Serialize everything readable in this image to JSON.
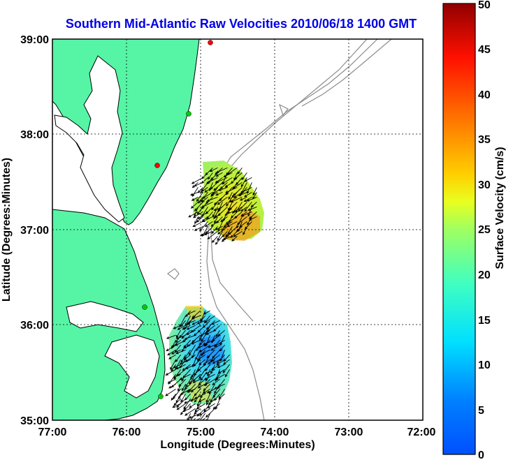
{
  "title": "Southern Mid-Atlantic Raw Velocities 2010/06/18 1400 GMT",
  "xlabel": "Longitude (Degrees:Minutes)",
  "ylabel": "Latitude (Degrees:Minutes)",
  "colorbar_label": "Surface Velocity (cm/s)",
  "x_ticks": [
    "77:00",
    "76:00",
    "75:00",
    "74:00",
    "73:00",
    "72:00"
  ],
  "y_ticks": [
    "39:00",
    "38:00",
    "37:00",
    "36:00",
    "35:00"
  ],
  "colorbar_ticks": [
    "0",
    "5",
    "10",
    "15",
    "20",
    "25",
    "30",
    "35",
    "40",
    "45",
    "50"
  ],
  "colors": {
    "land": "#55f5a5",
    "coast_outline": "#000000",
    "bathymetry": "#8c8c8c",
    "grid": "#000000",
    "title": "#0000e6",
    "arrow": "#000000"
  },
  "chart_data": {
    "type": "heatmap",
    "title": "Southern Mid-Atlantic Raw Velocities 2010/06/18 1400 GMT",
    "xlabel": "Longitude (Degrees:Minutes)",
    "ylabel": "Latitude (Degrees:Minutes)",
    "xlim": [
      -77,
      -72
    ],
    "ylim": [
      35,
      39
    ],
    "grid": true,
    "colorbar": {
      "label": "Surface Velocity (cm/s)",
      "range": [
        0,
        50
      ],
      "colormap": "jet"
    },
    "regions": [
      {
        "name": "northern_patch",
        "lon_range": [
          -75.1,
          -74.2
        ],
        "lat_range": [
          36.9,
          37.7
        ],
        "speed_range_cm_s": [
          18,
          32
        ],
        "dominant_direction": "southwest"
      },
      {
        "name": "southern_patch",
        "lon_range": [
          -75.4,
          -74.6
        ],
        "lat_range": [
          35.0,
          36.2
        ],
        "speed_range_cm_s": [
          6,
          28
        ],
        "dominant_direction": "southwest"
      }
    ],
    "stations": [
      {
        "lon": -74.88,
        "lat": 39.0,
        "color": "#ff0000"
      },
      {
        "lon": -75.1,
        "lat": 38.23,
        "color": "#00cc00"
      },
      {
        "lon": -75.48,
        "lat": 37.68,
        "color": "#ff0000"
      },
      {
        "lon": -75.72,
        "lat": 36.18,
        "color": "#00cc00"
      },
      {
        "lon": -75.52,
        "lat": 35.27,
        "color": "#00cc00"
      }
    ]
  }
}
